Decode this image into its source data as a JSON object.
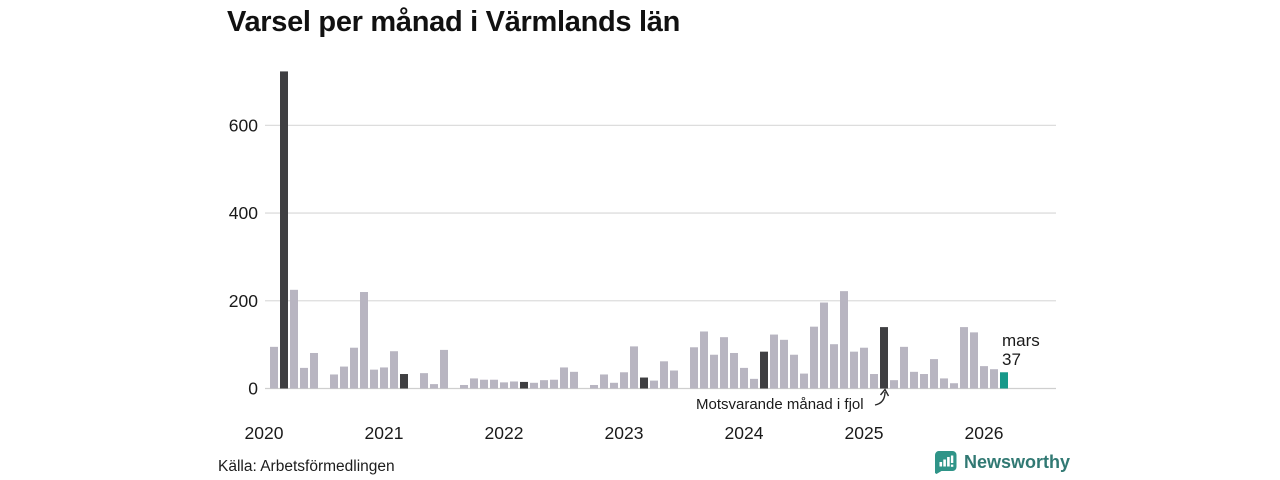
{
  "chart_data": {
    "type": "bar",
    "title": "Varsel per månad i Värmlands län",
    "y_ticks": [
      0,
      200,
      400,
      600
    ],
    "ylim": [
      0,
      740
    ],
    "x_ticks": [
      "2020",
      "2021",
      "2022",
      "2023",
      "2024",
      "2025",
      "2026"
    ],
    "grid": "horizontal",
    "legend_position": "none",
    "annotation": "Motsvarande månad i fjol",
    "current_label": "mars",
    "current_value": 37,
    "months": [
      {
        "m": "2020-01",
        "v": 0,
        "role": "normal"
      },
      {
        "m": "2020-02",
        "v": 95,
        "role": "normal"
      },
      {
        "m": "2020-03",
        "v": 723,
        "role": "fjol"
      },
      {
        "m": "2020-04",
        "v": 225,
        "role": "normal"
      },
      {
        "m": "2020-05",
        "v": 47,
        "role": "normal"
      },
      {
        "m": "2020-06",
        "v": 81,
        "role": "normal"
      },
      {
        "m": "2020-07",
        "v": 0,
        "role": "normal"
      },
      {
        "m": "2020-08",
        "v": 32,
        "role": "normal"
      },
      {
        "m": "2020-09",
        "v": 50,
        "role": "normal"
      },
      {
        "m": "2020-10",
        "v": 93,
        "role": "normal"
      },
      {
        "m": "2020-11",
        "v": 220,
        "role": "normal"
      },
      {
        "m": "2020-12",
        "v": 43,
        "role": "normal"
      },
      {
        "m": "2021-01",
        "v": 48,
        "role": "normal"
      },
      {
        "m": "2021-02",
        "v": 85,
        "role": "normal"
      },
      {
        "m": "2021-03",
        "v": 33,
        "role": "fjol"
      },
      {
        "m": "2021-04",
        "v": 0,
        "role": "normal"
      },
      {
        "m": "2021-05",
        "v": 35,
        "role": "normal"
      },
      {
        "m": "2021-06",
        "v": 10,
        "role": "normal"
      },
      {
        "m": "2021-07",
        "v": 88,
        "role": "normal"
      },
      {
        "m": "2021-08",
        "v": 0,
        "role": "normal"
      },
      {
        "m": "2021-09",
        "v": 8,
        "role": "normal"
      },
      {
        "m": "2021-10",
        "v": 23,
        "role": "normal"
      },
      {
        "m": "2021-11",
        "v": 20,
        "role": "normal"
      },
      {
        "m": "2021-12",
        "v": 20,
        "role": "normal"
      },
      {
        "m": "2022-01",
        "v": 14,
        "role": "normal"
      },
      {
        "m": "2022-02",
        "v": 16,
        "role": "normal"
      },
      {
        "m": "2022-03",
        "v": 15,
        "role": "fjol"
      },
      {
        "m": "2022-04",
        "v": 13,
        "role": "normal"
      },
      {
        "m": "2022-05",
        "v": 19,
        "role": "normal"
      },
      {
        "m": "2022-06",
        "v": 20,
        "role": "normal"
      },
      {
        "m": "2022-07",
        "v": 48,
        "role": "normal"
      },
      {
        "m": "2022-08",
        "v": 38,
        "role": "normal"
      },
      {
        "m": "2022-09",
        "v": 0,
        "role": "normal"
      },
      {
        "m": "2022-10",
        "v": 8,
        "role": "normal"
      },
      {
        "m": "2022-11",
        "v": 32,
        "role": "normal"
      },
      {
        "m": "2022-12",
        "v": 13,
        "role": "normal"
      },
      {
        "m": "2023-01",
        "v": 37,
        "role": "normal"
      },
      {
        "m": "2023-02",
        "v": 96,
        "role": "normal"
      },
      {
        "m": "2023-03",
        "v": 25,
        "role": "fjol"
      },
      {
        "m": "2023-04",
        "v": 18,
        "role": "normal"
      },
      {
        "m": "2023-05",
        "v": 62,
        "role": "normal"
      },
      {
        "m": "2023-06",
        "v": 41,
        "role": "normal"
      },
      {
        "m": "2023-07",
        "v": 0,
        "role": "normal"
      },
      {
        "m": "2023-08",
        "v": 94,
        "role": "normal"
      },
      {
        "m": "2023-09",
        "v": 130,
        "role": "normal"
      },
      {
        "m": "2023-10",
        "v": 77,
        "role": "normal"
      },
      {
        "m": "2023-11",
        "v": 117,
        "role": "normal"
      },
      {
        "m": "2023-12",
        "v": 81,
        "role": "normal"
      },
      {
        "m": "2024-01",
        "v": 47,
        "role": "normal"
      },
      {
        "m": "2024-02",
        "v": 22,
        "role": "normal"
      },
      {
        "m": "2024-03",
        "v": 84,
        "role": "fjol"
      },
      {
        "m": "2024-04",
        "v": 123,
        "role": "normal"
      },
      {
        "m": "2024-05",
        "v": 111,
        "role": "normal"
      },
      {
        "m": "2024-06",
        "v": 77,
        "role": "normal"
      },
      {
        "m": "2024-07",
        "v": 34,
        "role": "normal"
      },
      {
        "m": "2024-08",
        "v": 141,
        "role": "normal"
      },
      {
        "m": "2024-09",
        "v": 196,
        "role": "normal"
      },
      {
        "m": "2024-10",
        "v": 101,
        "role": "normal"
      },
      {
        "m": "2024-11",
        "v": 222,
        "role": "normal"
      },
      {
        "m": "2024-12",
        "v": 84,
        "role": "normal"
      },
      {
        "m": "2025-01",
        "v": 93,
        "role": "normal"
      },
      {
        "m": "2025-02",
        "v": 33,
        "role": "normal"
      },
      {
        "m": "2025-03",
        "v": 140,
        "role": "fjol"
      },
      {
        "m": "2025-04",
        "v": 19,
        "role": "normal"
      },
      {
        "m": "2025-05",
        "v": 95,
        "role": "normal"
      },
      {
        "m": "2025-06",
        "v": 38,
        "role": "normal"
      },
      {
        "m": "2025-07",
        "v": 33,
        "role": "normal"
      },
      {
        "m": "2025-08",
        "v": 67,
        "role": "normal"
      },
      {
        "m": "2025-09",
        "v": 23,
        "role": "normal"
      },
      {
        "m": "2025-10",
        "v": 12,
        "role": "normal"
      },
      {
        "m": "2025-11",
        "v": 140,
        "role": "normal"
      },
      {
        "m": "2025-12",
        "v": 128,
        "role": "normal"
      },
      {
        "m": "2026-01",
        "v": 51,
        "role": "normal"
      },
      {
        "m": "2026-02",
        "v": 44,
        "role": "normal"
      },
      {
        "m": "2026-03",
        "v": 37,
        "role": "current"
      }
    ]
  },
  "colors": {
    "bar_normal": "#b8b5c1",
    "bar_fjol": "#3f3f42",
    "bar_current": "#17998a",
    "gridline": "#dddddd",
    "baseline": "#cfcfcf",
    "axis_text": "#1a1a1a",
    "brand_teal": "#2f9488"
  },
  "source": {
    "label": "Källa: Arbetsförmedlingen"
  },
  "branding": {
    "name": "Newsworthy"
  }
}
